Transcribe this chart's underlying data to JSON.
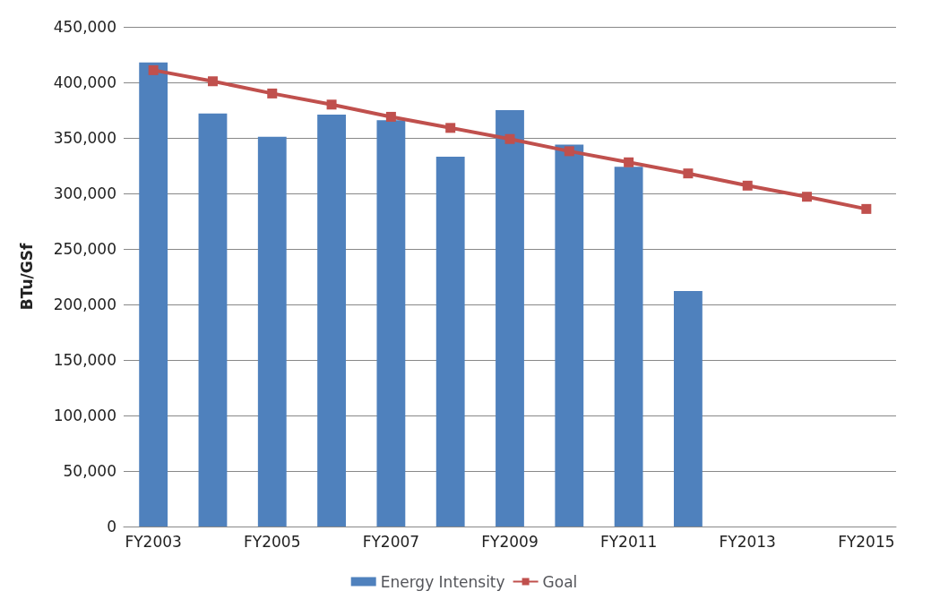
{
  "chart_data": {
    "type": "bar",
    "ylabel": "BTu/GSf",
    "categories": [
      "FY2003",
      null,
      "FY2005",
      null,
      "FY2007",
      null,
      "FY2009",
      null,
      "FY2011",
      null,
      "FY2013",
      null,
      "FY2015"
    ],
    "series": [
      {
        "name": "Energy Intensity",
        "color": "#4f81bd",
        "values": [
          418000,
          372000,
          351000,
          371000,
          366000,
          333000,
          375000,
          344000,
          324000,
          212000,
          null,
          null,
          null
        ]
      },
      {
        "name": "Goal",
        "type": "line",
        "color": "#c0504d",
        "marker": "square",
        "values": [
          411000,
          401000,
          390000,
          380000,
          369000,
          359000,
          349000,
          338000,
          328000,
          318000,
          307000,
          297000,
          286000
        ]
      }
    ],
    "ylim": [
      0,
      450000
    ],
    "yticks": [
      0,
      {
        "value": 50000,
        "label": "50,000"
      },
      {
        "value": 100000,
        "label": "100,000"
      },
      {
        "value": 150000,
        "label": "150,000"
      },
      {
        "value": 200000,
        "label": "200,000"
      },
      {
        "value": 250000,
        "label": "250,000"
      },
      {
        "value": 300000,
        "label": "300,000"
      },
      {
        "value": 350000,
        "label": "350,000"
      },
      {
        "value": 400000,
        "label": "400,000"
      },
      {
        "value": 450000,
        "label": "450,000"
      }
    ],
    "grid": "y",
    "legend": "bottom"
  }
}
